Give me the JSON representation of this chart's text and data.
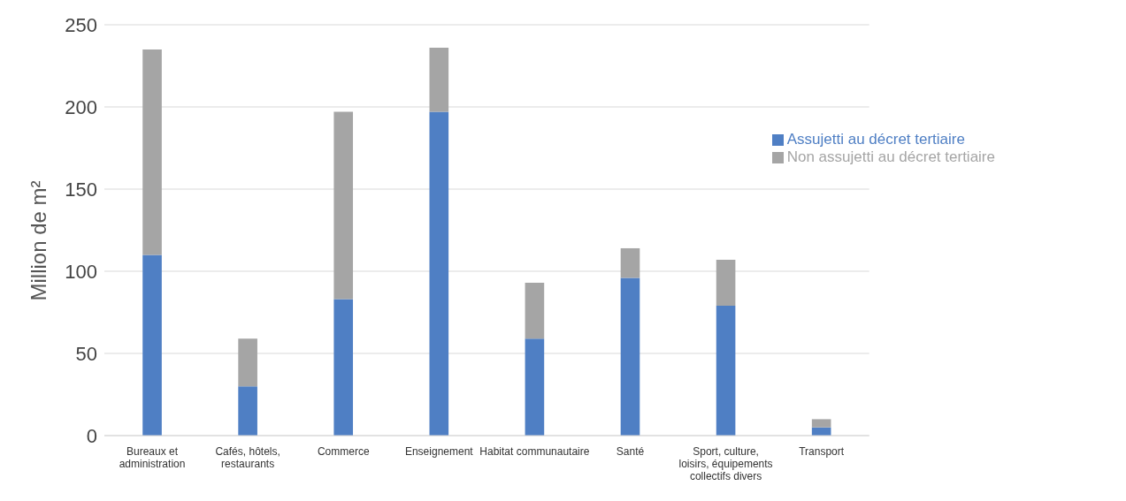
{
  "chart_data": {
    "type": "bar",
    "stacked": true,
    "ylabel": "Million de m²",
    "categories": [
      "Bureaux et administration",
      "Cafés, hôtels, restaurants",
      "Commerce",
      "Enseignement",
      "Habitat communautaire",
      "Santé",
      "Sport, culture, loisirs, équipements collectifs divers",
      "Transport"
    ],
    "series": [
      {
        "name": "Assujetti au décret tertiaire",
        "color": "#4f7fc4",
        "values": [
          110,
          30,
          83,
          197,
          59,
          96,
          79,
          5
        ]
      },
      {
        "name": "Non assujetti au décret tertiaire",
        "color": "#a5a5a5",
        "values": [
          125,
          29,
          114,
          39,
          34,
          18,
          28,
          5
        ]
      }
    ],
    "ylim": [
      0,
      250
    ],
    "yticks": [
      0,
      50,
      100,
      150,
      200,
      250
    ],
    "grid": "y",
    "legend": "top right"
  }
}
